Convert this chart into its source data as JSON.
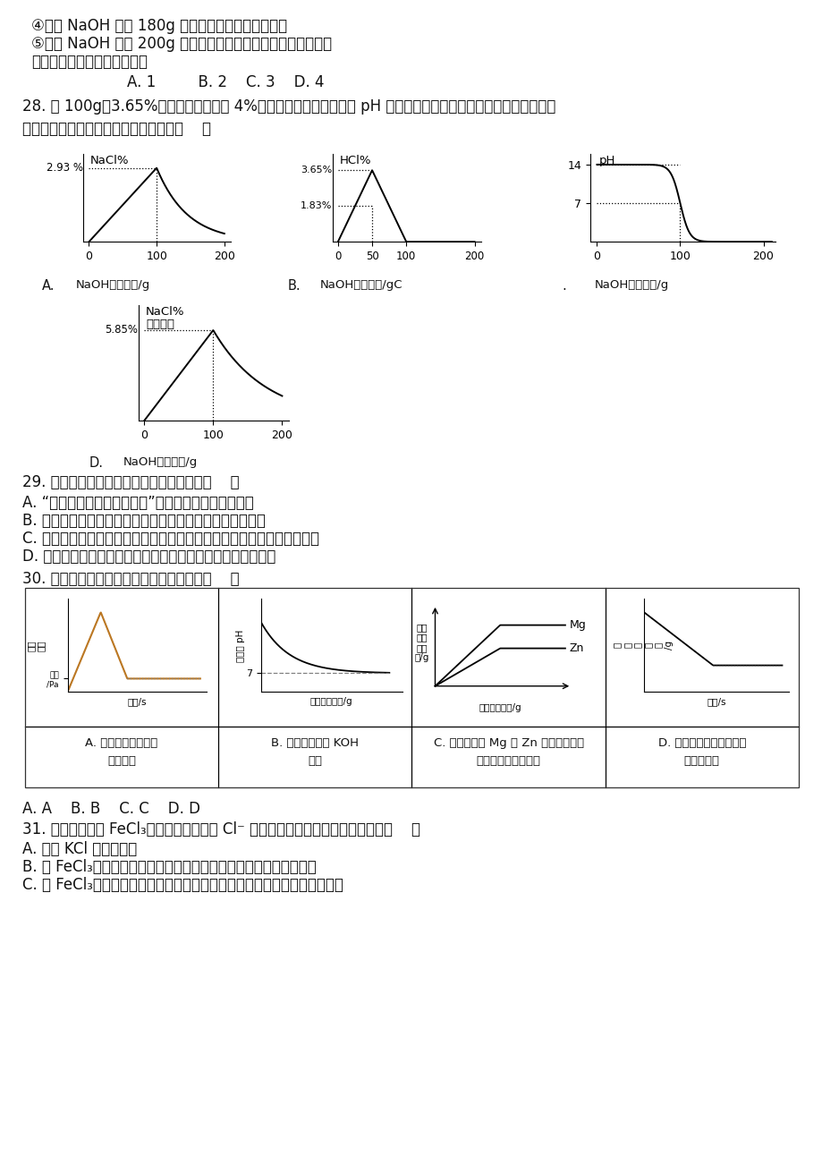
{
  "line1": "④加入 NaOH 溶液 180g 时产生的沉淠中有两种成分",
  "line2": "⑤加入 NaOH 溶液 200g 时得到的溶液中的阴离子如果有三种，",
  "line3": "说明原无色溶液中有硒酸钖。",
  "q27": "        A. 1         B. 2    C. 3    D. 4",
  "q28_1": "28. 向 100g、3.65%的盐酸中逐滴加入 4%的氪氧化钓溶液，溶液的 pH 或相关物质的质量分数与加入的氪氧化钓溶",
  "q28_2": "液质量的关系如图所示，其中正确的是（    ）",
  "q29_0": "29. 下列对生活中的一些现象解释错误的是（    ）",
  "q29_A": "A. “遥知不是雪，为有暗香来”，因为分子在不断的运动",
  "q29_B": "B. 嗝汽水时容易打嗝，因为气体的溶解度随温度升高而减小",
  "q29_C": "C. 吃松花蛋时可加入少量食醋，因为食醋能消除蛋中所含碱性物质的涋味",
  "q29_D": "D. 滴加洗涆剂能将餐具上的油污洗掉，因为洗涆剂能溶解油污",
  "q30_0": "30. 下列图象能正确反映对应变化关系的是（    ）",
  "q30_ans": "A. A    B. B    C. C    D. D",
  "q31_0": "31. 若用实验证明 FeCl₃溶液显黄色不是由 Cl⁻ 离子造成的，下列实验无意义的是（    ）",
  "q31_A": "A. 观察 KCl 溶液的颜色",
  "q31_B": "B. 向 FeCl₃溶液中滴加适量氪氧化钓溶液振荡后静置，溶液黄色消失",
  "q31_C": "C. 向 FeCl₃溶液中滴加适量无色硒酸銀溶液，振荡后静置，溶液黄色未消失",
  "gA_ylabel": "NaCl%",
  "gA_peak_label": "2.93 %",
  "gA_xlabel": "NaOH溶液质量/g",
  "gB_ylabel": "HCl%",
  "gB_top_label": "3.65%",
  "gB_mid_label": "1.83%",
  "gB_xlabel": "NaOH溶液质量/gC",
  "gC_ylabel": "pH",
  "gC_xlabel": "NaOH溶液质量/g",
  "gD_ylabel1": "NaCl%",
  "gD_ylabel2": "（质量）",
  "gD_peak_label": "5.85%",
  "gD_xlabel": "NaOH溶液质量/g",
  "cA_ylabel1": "压强",
  "cA_ylabel2": "压力",
  "cA_ytick": "稳定\n/Pa",
  "cA_xlabel": "时间/s",
  "cA_label1": "A. 足量红磷在密闭容",
  "cA_label2": "器中燃烧",
  "cB_ylabel": "溶液的 pH",
  "cB_xlabel": "加入水的质量/g",
  "cB_label1": "B. 常温下，稀释 KOH",
  "cB_label2": "溶液",
  "cC_ylabel1": "生成",
  "cC_ylabel2": "氢气",
  "cC_ylabel3": "的质",
  "cC_ylabel4": "量/g",
  "cC_xlabel": "稀盐酸的质量/g",
  "cC_Mg": "Mg",
  "cC_Zn": "Zn",
  "cC_label1": "C. 向等质量的 Mg 和 Zn 中分别加入等",
  "cC_label2": "质量等浓度的稀盐酸",
  "cD_ylabel1": "固",
  "cD_ylabel2": "体",
  "cD_ylabel3": "的",
  "cD_ylabel4": "质",
  "cD_ylabel5": "量",
  "cD_ylabel6": "/g",
  "cD_xlabel": "时间/s",
  "cD_label1": "D. 将铁钉加入一定量的硬",
  "cD_label2": "酸鑰溶液中"
}
